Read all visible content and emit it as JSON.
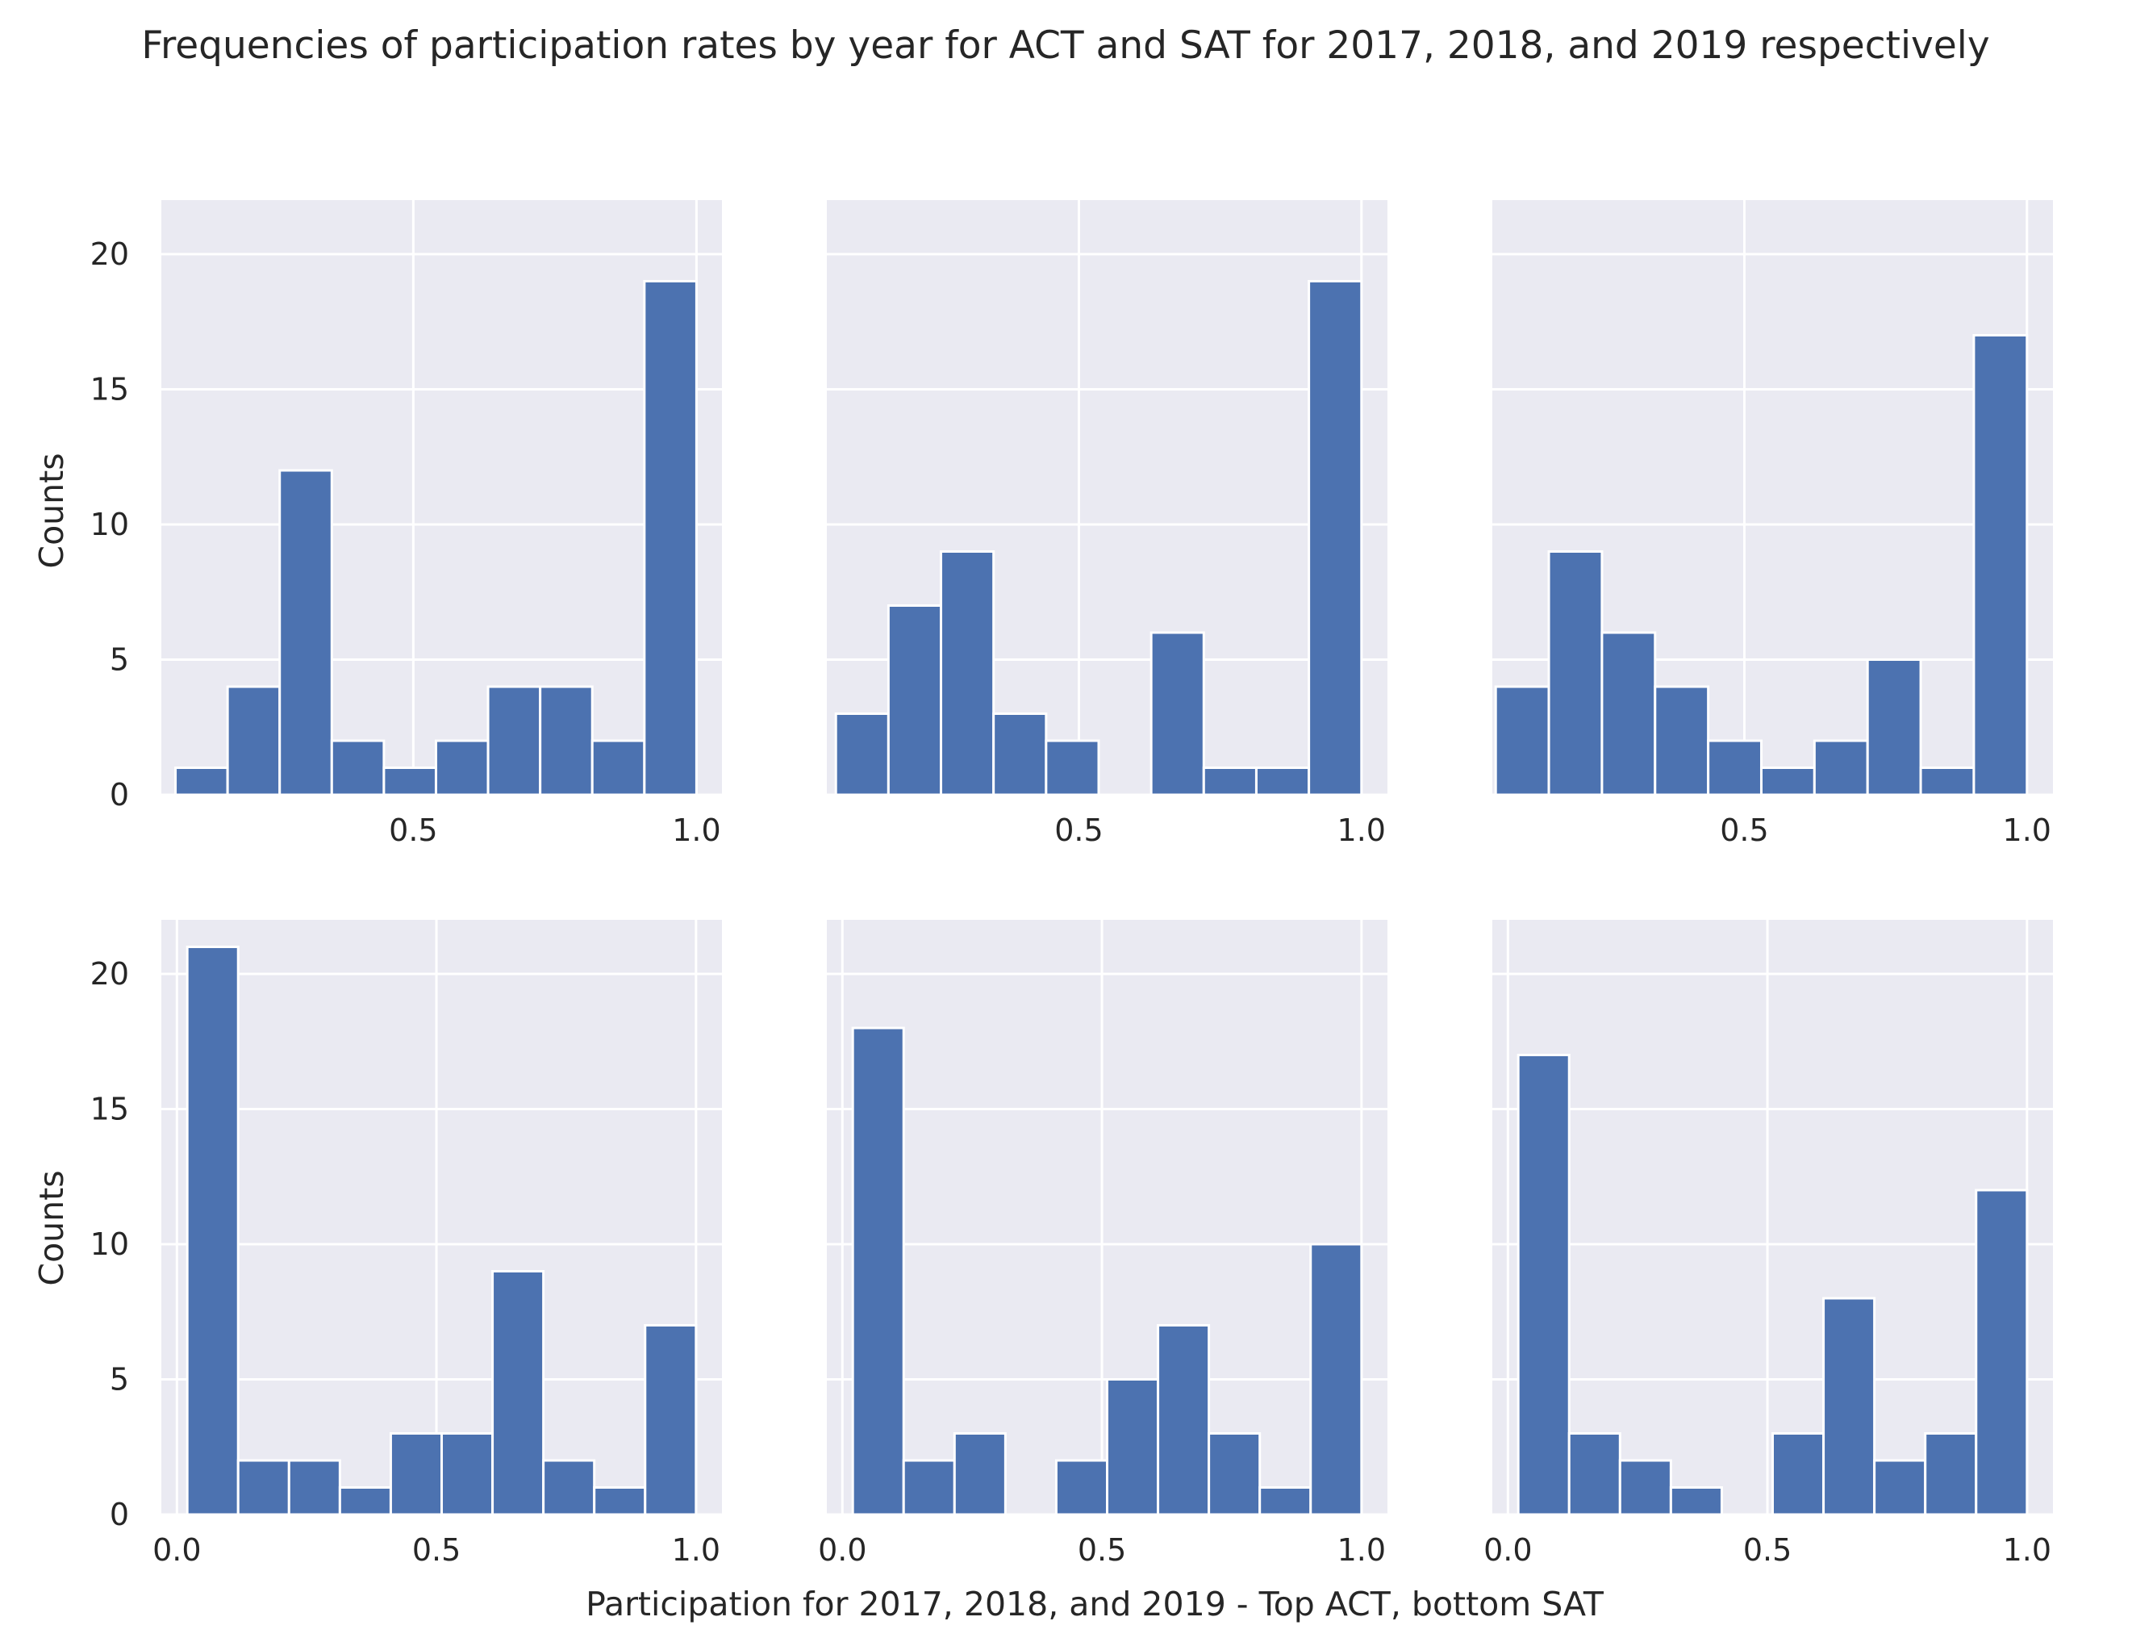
{
  "chart_data": {
    "type": "bar",
    "title": "Frequencies of participation rates by year for ACT and SAT for 2017, 2018, and 2019 respectively",
    "xlabel": "Participation for 2017, 2018, and 2019 - Top ACT, bottom SAT",
    "ylabel": "Counts",
    "ylim": [
      0,
      22
    ],
    "yticks": [
      0,
      5,
      10,
      15,
      20
    ],
    "grid": true,
    "bar_color": "#4c72b0",
    "panel_bg": "#eaeaf2",
    "panels": [
      {
        "row": "ACT",
        "year": "2017",
        "xlim": [
          0.055,
          1.045
        ],
        "xticks": [
          0.5,
          1.0
        ],
        "bins": [
          [
            0.08,
            0.172
          ],
          [
            0.172,
            0.264
          ],
          [
            0.264,
            0.356
          ],
          [
            0.356,
            0.448
          ],
          [
            0.448,
            0.54
          ],
          [
            0.54,
            0.632
          ],
          [
            0.632,
            0.724
          ],
          [
            0.724,
            0.816
          ],
          [
            0.816,
            0.908
          ],
          [
            0.908,
            1.0
          ]
        ],
        "counts": [
          1,
          4,
          12,
          2,
          1,
          2,
          4,
          4,
          2,
          19
        ]
      },
      {
        "row": "ACT",
        "year": "2018",
        "xlim": [
          0.054,
          1.046
        ],
        "xticks": [
          0.5,
          1.0
        ],
        "bins": [
          [
            0.07,
            0.163
          ],
          [
            0.163,
            0.256
          ],
          [
            0.256,
            0.349
          ],
          [
            0.349,
            0.442
          ],
          [
            0.442,
            0.535
          ],
          [
            0.535,
            0.628
          ],
          [
            0.628,
            0.721
          ],
          [
            0.721,
            0.814
          ],
          [
            0.814,
            0.907
          ],
          [
            0.907,
            1.0
          ]
        ],
        "counts": [
          3,
          7,
          9,
          3,
          2,
          0,
          6,
          1,
          1,
          19
        ]
      },
      {
        "row": "ACT",
        "year": "2019",
        "xlim": [
          0.054,
          1.046
        ],
        "xticks": [
          0.5,
          1.0
        ],
        "bins": [
          [
            0.06,
            0.154
          ],
          [
            0.154,
            0.248
          ],
          [
            0.248,
            0.342
          ],
          [
            0.342,
            0.436
          ],
          [
            0.436,
            0.53
          ],
          [
            0.53,
            0.624
          ],
          [
            0.624,
            0.718
          ],
          [
            0.718,
            0.812
          ],
          [
            0.812,
            0.906
          ],
          [
            0.906,
            1.0
          ]
        ],
        "counts": [
          4,
          9,
          6,
          4,
          2,
          1,
          2,
          5,
          1,
          17
        ]
      },
      {
        "row": "SAT",
        "year": "2017",
        "xlim": [
          -0.03,
          1.05
        ],
        "xticks": [
          0.0,
          0.5,
          1.0
        ],
        "bins": [
          [
            0.02,
            0.118
          ],
          [
            0.118,
            0.216
          ],
          [
            0.216,
            0.314
          ],
          [
            0.314,
            0.412
          ],
          [
            0.412,
            0.51
          ],
          [
            0.51,
            0.608
          ],
          [
            0.608,
            0.706
          ],
          [
            0.706,
            0.804
          ],
          [
            0.804,
            0.902
          ],
          [
            0.902,
            1.0
          ]
        ],
        "counts": [
          21,
          2,
          2,
          1,
          3,
          3,
          9,
          2,
          1,
          7
        ]
      },
      {
        "row": "SAT",
        "year": "2018",
        "xlim": [
          -0.03,
          1.05
        ],
        "xticks": [
          0.0,
          0.5,
          1.0
        ],
        "bins": [
          [
            0.02,
            0.118
          ],
          [
            0.118,
            0.216
          ],
          [
            0.216,
            0.314
          ],
          [
            0.314,
            0.412
          ],
          [
            0.412,
            0.51
          ],
          [
            0.51,
            0.608
          ],
          [
            0.608,
            0.706
          ],
          [
            0.706,
            0.804
          ],
          [
            0.804,
            0.902
          ],
          [
            0.902,
            1.0
          ]
        ],
        "counts": [
          18,
          2,
          3,
          0,
          2,
          5,
          7,
          3,
          1,
          10
        ]
      },
      {
        "row": "SAT",
        "year": "2019",
        "xlim": [
          -0.03,
          1.05
        ],
        "xticks": [
          0.0,
          0.5,
          1.0
        ],
        "bins": [
          [
            0.02,
            0.118
          ],
          [
            0.118,
            0.216
          ],
          [
            0.216,
            0.314
          ],
          [
            0.314,
            0.412
          ],
          [
            0.412,
            0.51
          ],
          [
            0.51,
            0.608
          ],
          [
            0.608,
            0.706
          ],
          [
            0.706,
            0.804
          ],
          [
            0.804,
            0.902
          ],
          [
            0.902,
            1.0
          ]
        ],
        "counts": [
          17,
          3,
          2,
          1,
          0,
          3,
          8,
          2,
          3,
          12
        ]
      }
    ]
  }
}
